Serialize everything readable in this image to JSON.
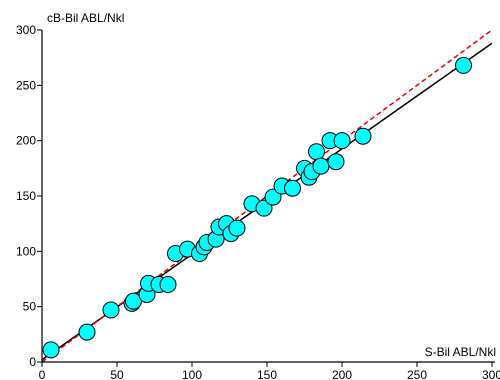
{
  "chart_data": {
    "type": "scatter",
    "xlabel": "S-Bil ABL/Nkl",
    "ylabel": "cB-Bil ABL/Nkl",
    "xlim": [
      0,
      300
    ],
    "ylim": [
      0,
      300
    ],
    "xticks": [
      0,
      50,
      100,
      150,
      200,
      250,
      300
    ],
    "yticks": [
      0,
      50,
      100,
      150,
      200,
      250,
      300
    ],
    "grid": false,
    "legend": "none",
    "colors": {
      "points": "#00ffff",
      "point_outline": "#000000",
      "regression": "#000000",
      "identity": "#e00000"
    },
    "points": [
      {
        "x": 6,
        "y": 11
      },
      {
        "x": 30,
        "y": 27
      },
      {
        "x": 46,
        "y": 47
      },
      {
        "x": 60,
        "y": 53
      },
      {
        "x": 61,
        "y": 55
      },
      {
        "x": 70,
        "y": 61
      },
      {
        "x": 71,
        "y": 71
      },
      {
        "x": 78,
        "y": 70
      },
      {
        "x": 84,
        "y": 70
      },
      {
        "x": 89,
        "y": 98
      },
      {
        "x": 97,
        "y": 102
      },
      {
        "x": 105,
        "y": 98
      },
      {
        "x": 108,
        "y": 104
      },
      {
        "x": 110,
        "y": 108
      },
      {
        "x": 116,
        "y": 111
      },
      {
        "x": 118,
        "y": 122
      },
      {
        "x": 123,
        "y": 125
      },
      {
        "x": 126,
        "y": 116
      },
      {
        "x": 130,
        "y": 121
      },
      {
        "x": 140,
        "y": 143
      },
      {
        "x": 148,
        "y": 139
      },
      {
        "x": 154,
        "y": 149
      },
      {
        "x": 160,
        "y": 159
      },
      {
        "x": 167,
        "y": 157
      },
      {
        "x": 175,
        "y": 175
      },
      {
        "x": 178,
        "y": 167
      },
      {
        "x": 180,
        "y": 172
      },
      {
        "x": 183,
        "y": 190
      },
      {
        "x": 186,
        "y": 177
      },
      {
        "x": 192,
        "y": 200
      },
      {
        "x": 196,
        "y": 181
      },
      {
        "x": 200,
        "y": 200
      },
      {
        "x": 214,
        "y": 204
      },
      {
        "x": 281,
        "y": 268
      }
    ],
    "lines": [
      {
        "kind": "regression",
        "style": "solid",
        "x": [
          0,
          300
        ],
        "y": [
          2,
          288
        ]
      },
      {
        "kind": "identity",
        "style": "dashed",
        "x": [
          0,
          300
        ],
        "y": [
          0,
          300
        ]
      }
    ]
  }
}
